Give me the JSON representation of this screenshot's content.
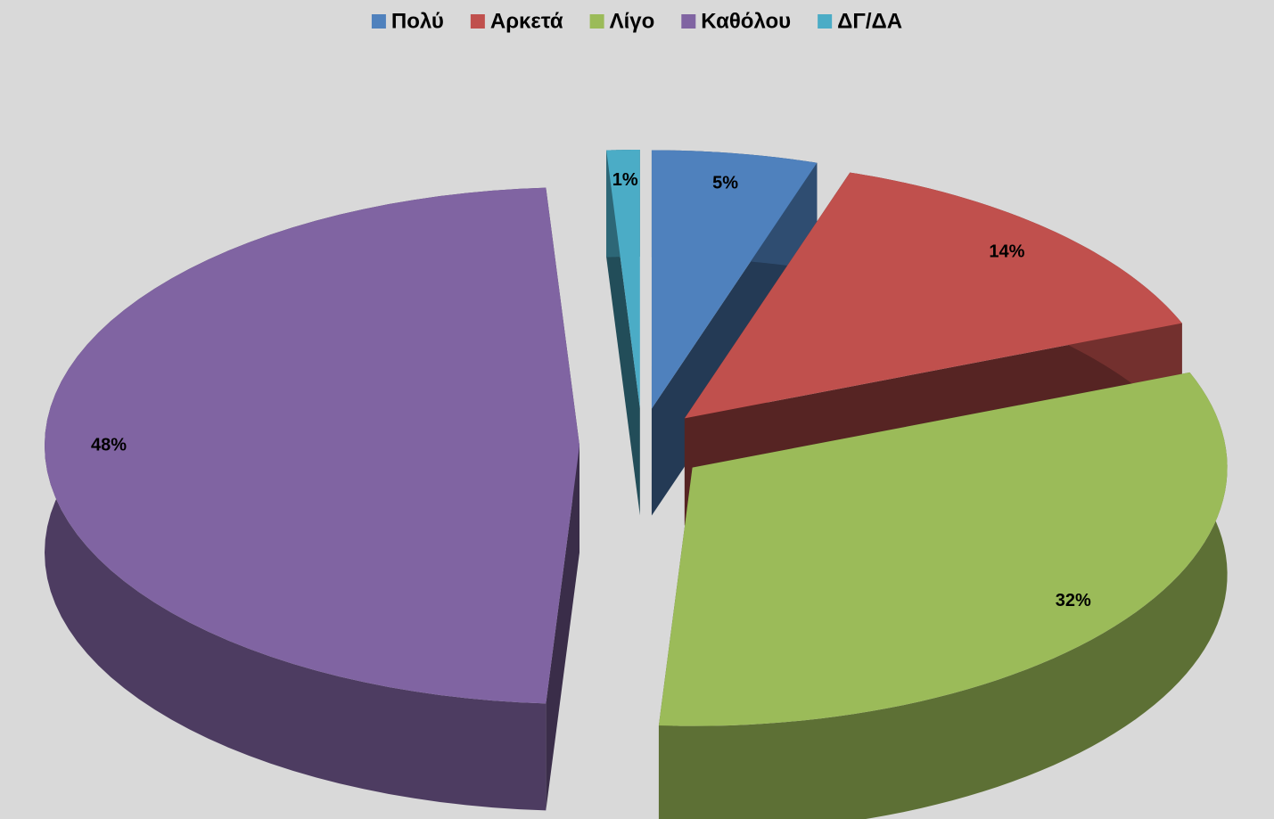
{
  "chart_data": {
    "type": "pie",
    "categories": [
      "Πολύ",
      "Αρκετά",
      "Λίγο",
      "Καθόλου",
      "ΔΓ/ΔΑ"
    ],
    "values": [
      5,
      14,
      32,
      48,
      1
    ],
    "value_labels": [
      "5%",
      "14%",
      "32%",
      "48%",
      "1%"
    ],
    "colors": [
      "#4f81bd",
      "#c0504d",
      "#9bbb59",
      "#8064a2",
      "#4bacc6"
    ],
    "legend": "top"
  }
}
